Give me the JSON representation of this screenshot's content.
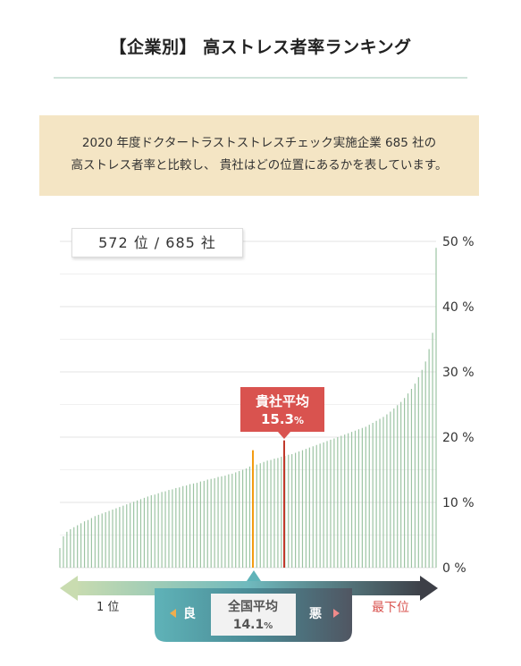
{
  "header": {
    "title": "【企業別】 高ストレス者率ランキング"
  },
  "info": {
    "line1": "2020 年度ドクタートラストストレスチェック実施企業 685 社の",
    "line2": "高ストレス者率と比較し、 貴社はどの位置にあるかを表しています。"
  },
  "rank_box": {
    "text": "572 位 / 685 社"
  },
  "company_avg": {
    "label": "貴社平均",
    "value": "15.3",
    "unit": "%"
  },
  "national_avg": {
    "label": "全国平均",
    "value": "14.1",
    "unit": "%"
  },
  "scale": {
    "best_label": "1 位",
    "worst_label": "最下位",
    "good_label": "良",
    "bad_label": "悪"
  },
  "chart_data": {
    "type": "bar",
    "sorted_ascending": true,
    "ylim": [
      0,
      50
    ],
    "yticks": [
      "0 %",
      "10 %",
      "20 %",
      "30 %",
      "40 %",
      "50 %"
    ],
    "grid": true,
    "values": [
      3.0,
      4.8,
      5.5,
      5.9,
      6.2,
      6.5,
      6.8,
      7.1,
      7.3,
      7.6,
      7.9,
      8.1,
      8.3,
      8.5,
      8.7,
      8.9,
      9.1,
      9.3,
      9.5,
      9.7,
      9.9,
      10.1,
      10.3,
      10.5,
      10.7,
      10.9,
      11.1,
      11.2,
      11.4,
      11.6,
      11.7,
      11.9,
      12.0,
      12.2,
      12.3,
      12.5,
      12.6,
      12.8,
      12.9,
      13.0,
      13.2,
      13.3,
      13.5,
      13.6,
      13.7,
      13.9,
      14.0,
      14.1,
      14.3,
      14.4,
      14.6,
      14.8,
      15.0,
      15.2,
      15.5,
      15.3,
      15.8,
      16.0,
      16.2,
      16.4,
      16.5,
      16.7,
      16.8,
      17.0,
      17.1,
      17.3,
      17.4,
      17.6,
      17.8,
      18.0,
      18.2,
      18.4,
      18.6,
      18.8,
      19.0,
      19.2,
      19.4,
      19.6,
      19.8,
      20.0,
      20.2,
      20.4,
      20.6,
      20.8,
      21.0,
      21.2,
      21.4,
      21.6,
      21.9,
      22.2,
      22.5,
      22.8,
      23.1,
      23.5,
      23.9,
      24.4,
      24.9,
      25.4,
      26.0,
      26.7,
      27.4,
      28.2,
      29.2,
      30.3,
      31.6,
      33.5,
      36.0,
      49.0
    ],
    "national_avg": 14.1,
    "company_avg": 15.3,
    "company_bar_value": 19.5,
    "national_bar_value": 18.0,
    "colors": {
      "bar": "#9cc4a3",
      "company_line": "#c0392b",
      "national_line": "#f39c12",
      "bubble": "#d9534f"
    }
  }
}
